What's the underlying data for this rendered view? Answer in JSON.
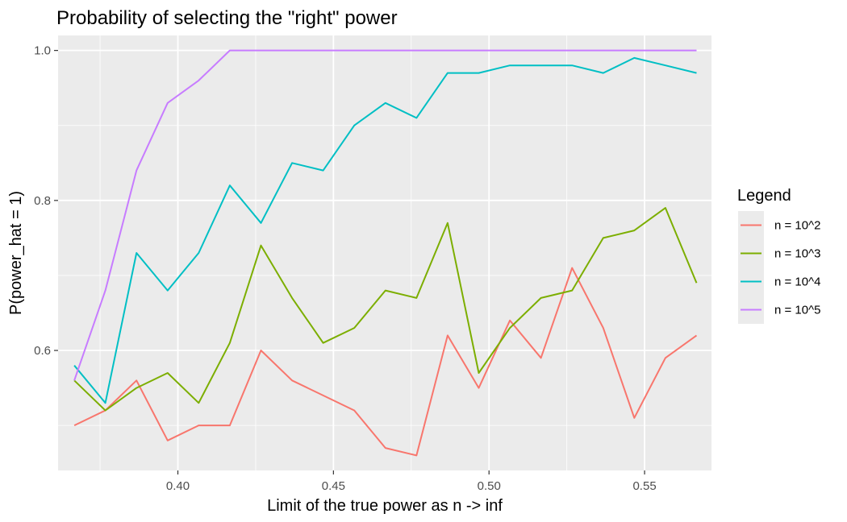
{
  "chart_data": {
    "type": "line",
    "title": "Probability of selecting the \"right\" power",
    "xlabel": "Limit of the true power as n -> inf",
    "ylabel": "P(power_hat = 1)",
    "xlim": [
      0.3615,
      0.5715
    ],
    "ylim": [
      0.44,
      1.02
    ],
    "x_ticks": [
      0.4,
      0.45,
      0.5,
      0.55
    ],
    "x_tick_labels": [
      "0.40",
      "0.45",
      "0.50",
      "0.55"
    ],
    "y_ticks": [
      0.6,
      0.8,
      1.0
    ],
    "y_tick_labels": [
      "0.6",
      "0.8",
      "1.0"
    ],
    "grid": true,
    "panel_background": "#ebebeb",
    "grid_color": "#ffffff",
    "legend": {
      "title": "Legend",
      "position": "right"
    },
    "x": [
      0.3667,
      0.3767,
      0.3867,
      0.3967,
      0.4067,
      0.4167,
      0.4267,
      0.4367,
      0.4467,
      0.4567,
      0.4667,
      0.4767,
      0.4867,
      0.4967,
      0.5067,
      0.5167,
      0.5267,
      0.5367,
      0.5467,
      0.5567,
      0.5667
    ],
    "series": [
      {
        "name": "n = 10^2",
        "color": "#f8766d",
        "values": [
          0.5,
          0.52,
          0.56,
          0.48,
          0.5,
          0.5,
          0.6,
          0.56,
          0.54,
          0.52,
          0.47,
          0.46,
          0.62,
          0.55,
          0.64,
          0.59,
          0.71,
          0.63,
          0.51,
          0.59,
          0.62
        ]
      },
      {
        "name": "n = 10^3",
        "color": "#7cae00",
        "values": [
          0.56,
          0.52,
          0.55,
          0.57,
          0.53,
          0.61,
          0.74,
          0.67,
          0.61,
          0.63,
          0.68,
          0.67,
          0.77,
          0.57,
          0.63,
          0.67,
          0.68,
          0.75,
          0.76,
          0.79,
          0.69
        ]
      },
      {
        "name": "n = 10^4",
        "color": "#00bfc4",
        "values": [
          0.58,
          0.53,
          0.73,
          0.68,
          0.73,
          0.82,
          0.77,
          0.85,
          0.84,
          0.9,
          0.93,
          0.91,
          0.97,
          0.97,
          0.98,
          0.98,
          0.98,
          0.97,
          0.99,
          0.98,
          0.97
        ]
      },
      {
        "name": "n = 10^5",
        "color": "#c77cff",
        "values": [
          0.56,
          0.68,
          0.84,
          0.93,
          0.96,
          1.0,
          1.0,
          1.0,
          1.0,
          1.0,
          1.0,
          1.0,
          1.0,
          1.0,
          1.0,
          1.0,
          1.0,
          1.0,
          1.0,
          1.0,
          1.0
        ]
      }
    ]
  }
}
